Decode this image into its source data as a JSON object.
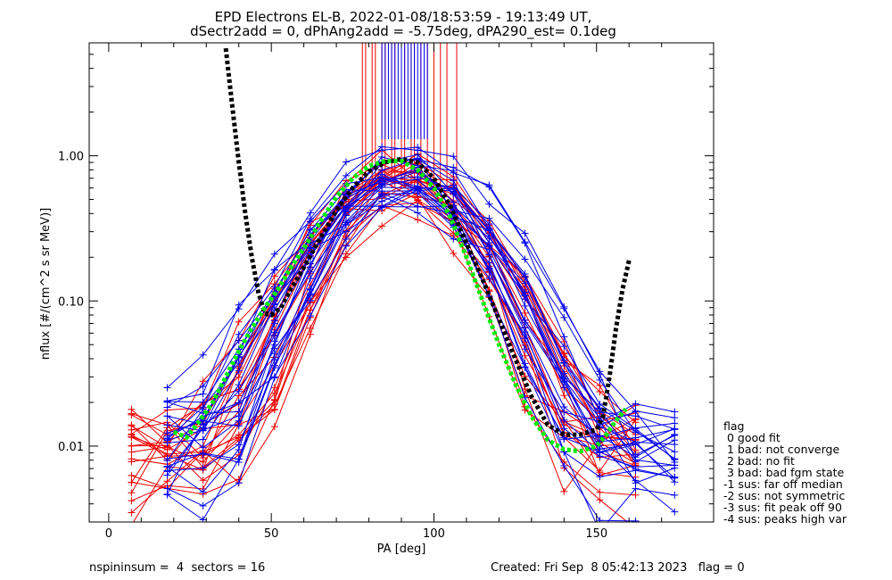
{
  "chart_data": {
    "type": "line",
    "title": "EPD Electrons EL-B, 2022-01-08/18:53:59 - 19:13:49 UT,",
    "subtitle": "dSectr2add = 0, dPhAng2add = -5.75deg, dPA290_est=   0.1deg",
    "xlabel": "PA [deg]",
    "ylabel": "nflux [#/(cm^2 s sr MeV)]",
    "xlim": [
      -6,
      186
    ],
    "ylim": [
      0.003,
      6.0
    ],
    "yscale": "log",
    "grid": false,
    "x_ticks": [
      0,
      50,
      100,
      150
    ],
    "x_tick_labels": [
      "0",
      "50",
      "100",
      "150"
    ],
    "y_ticks": [
      0.01,
      0.1,
      1.0
    ],
    "y_tick_labels": [
      "0.01",
      "0.10",
      "1.00"
    ],
    "series": [
      {
        "color": "#000000",
        "style": "dotted-thick",
        "x": [
          36,
          38,
          40,
          42,
          44,
          46,
          48,
          50,
          53,
          56,
          60,
          65,
          70,
          75,
          80,
          85,
          90,
          95,
          100,
          105,
          110,
          115,
          120,
          125,
          130,
          135,
          140,
          145,
          150,
          152,
          154,
          156,
          158,
          160
        ],
        "y": [
          5.5,
          2.2,
          0.9,
          0.4,
          0.2,
          0.115,
          0.082,
          0.08,
          0.09,
          0.12,
          0.17,
          0.27,
          0.42,
          0.6,
          0.78,
          0.9,
          0.95,
          0.9,
          0.7,
          0.45,
          0.25,
          0.14,
          0.075,
          0.04,
          0.022,
          0.014,
          0.012,
          0.012,
          0.013,
          0.016,
          0.03,
          0.065,
          0.12,
          0.19
        ]
      },
      {
        "color": "#00ee00",
        "style": "dotted-thick",
        "x": [
          20,
          24,
          28,
          32,
          36,
          40,
          44,
          48,
          52,
          56,
          60,
          65,
          70,
          75,
          80,
          85,
          90,
          95,
          100,
          105,
          110,
          115,
          120,
          125,
          130,
          135,
          140,
          145,
          150,
          153,
          156,
          159
        ],
        "y": [
          0.0125,
          0.0115,
          0.015,
          0.02,
          0.03,
          0.045,
          0.065,
          0.09,
          0.12,
          0.17,
          0.23,
          0.35,
          0.52,
          0.7,
          0.85,
          0.92,
          0.92,
          0.8,
          0.6,
          0.38,
          0.2,
          0.1,
          0.05,
          0.027,
          0.016,
          0.011,
          0.0095,
          0.0092,
          0.01,
          0.012,
          0.015,
          0.018
        ]
      }
    ],
    "red_spikes_x": [
      78,
      79,
      81,
      82,
      84,
      85,
      87,
      88,
      90,
      91,
      93,
      94,
      96,
      98,
      100,
      102,
      104,
      107
    ],
    "blue_spikes_x": [
      84,
      85,
      86,
      87,
      88,
      89,
      90,
      91,
      92,
      93,
      94,
      95,
      96,
      97,
      98
    ]
  },
  "legend": {
    "title": "flag",
    "items": [
      " 0 good fit",
      " 1 bad: not converge",
      " 2 bad: no fit",
      " 3 bad: bad fgm state",
      "-1 sus: far off median",
      "-2 sus: not symmetric",
      "-3 sus: fit peak off 90",
      "-4 sus: peaks high var"
    ]
  },
  "footer": {
    "left": "nspininsum =  4  sectors = 16",
    "right": "Created: Fri Sep  8 05:42:13 2023   flag = 0"
  },
  "colors": {
    "red": "#ee0000",
    "blue": "#0000ee",
    "green": "#00ee00",
    "black": "#000000"
  }
}
